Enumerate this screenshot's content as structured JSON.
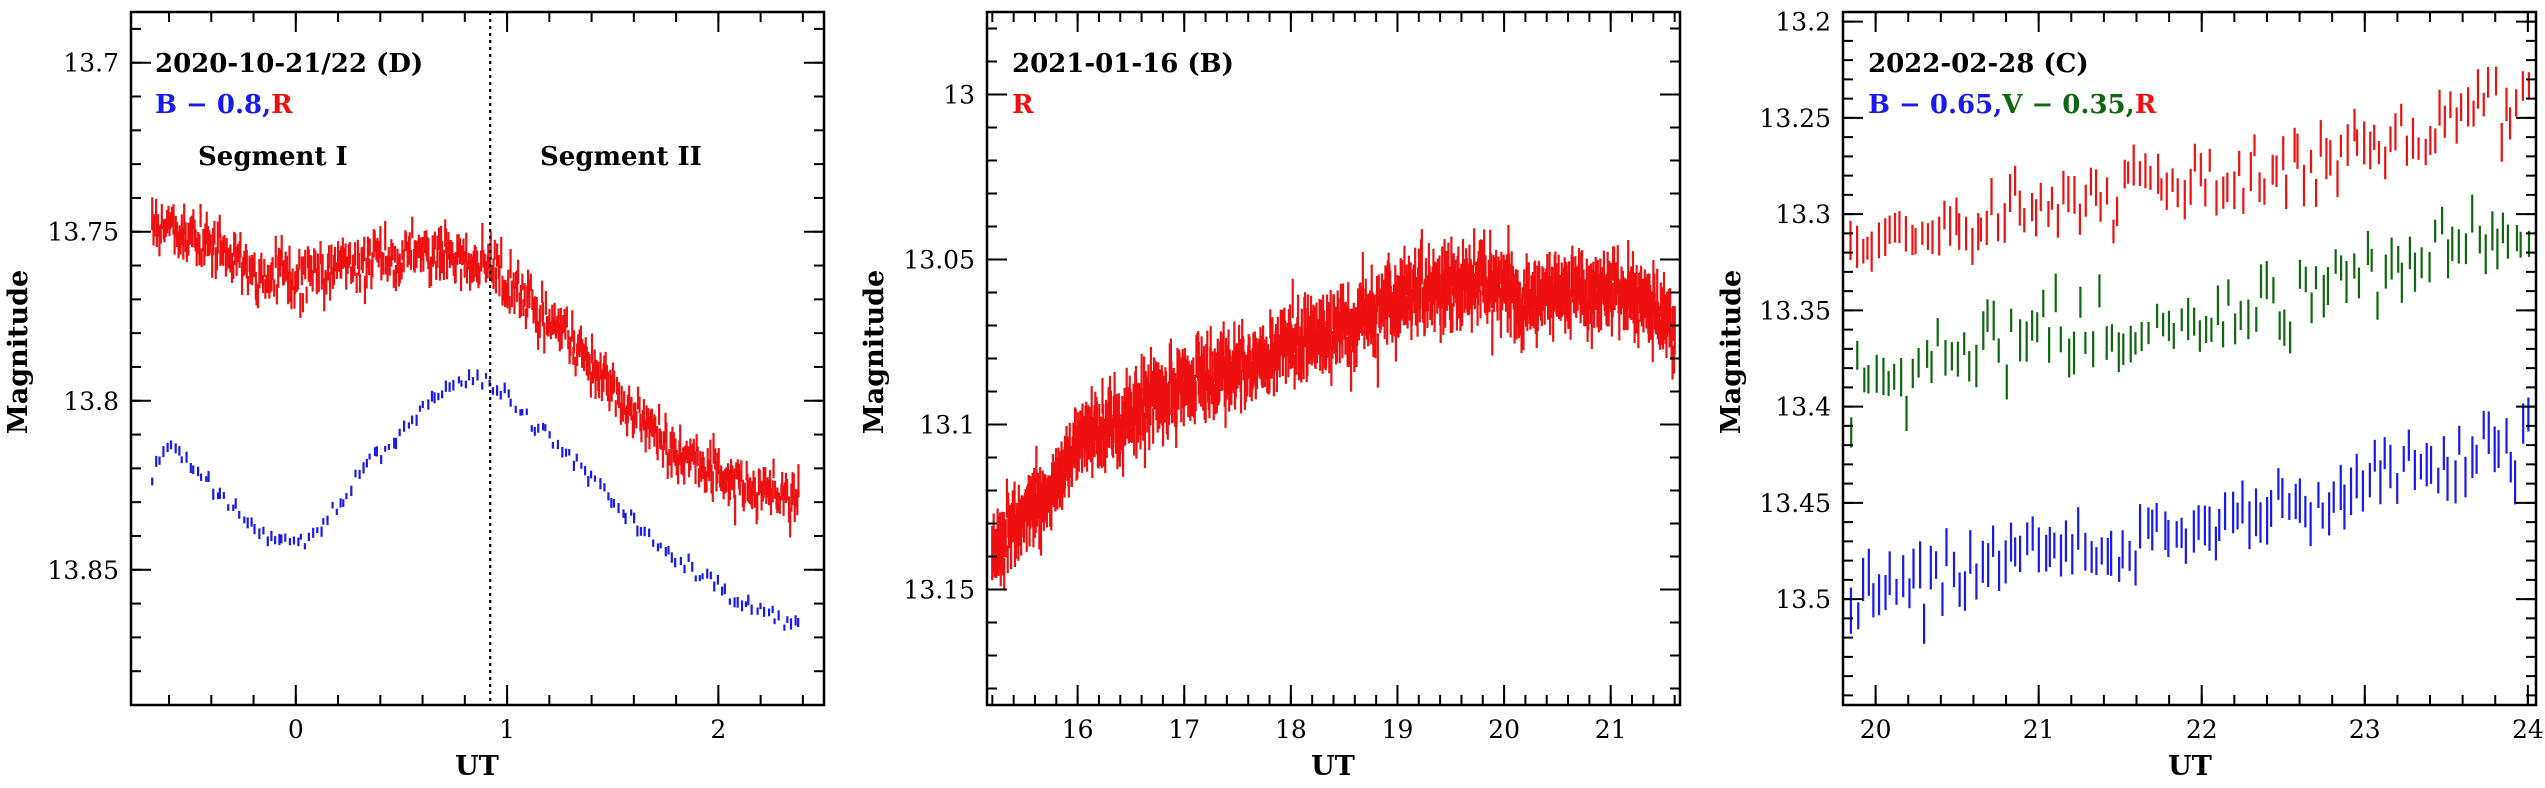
{
  "figure": {
    "background": "#ffffff"
  },
  "colors": {
    "blue": "#1a1aee",
    "red": "#ee1111",
    "green": "#116611",
    "black": "#000000"
  },
  "chart_data": [
    {
      "type": "scatter",
      "xlabel": "UT",
      "ylabel": "Magnitude",
      "xlim": [
        -0.78,
        2.5
      ],
      "ylim": [
        13.89,
        13.685
      ],
      "y_inverted": true,
      "xticks": [
        0,
        1,
        2
      ],
      "xtick_labels": [
        "0",
        "1",
        "2"
      ],
      "yticks": [
        13.7,
        13.75,
        13.8,
        13.85
      ],
      "ytick_labels": [
        "13.7",
        "13.75",
        "13.8",
        "13.85"
      ],
      "annotation_title": "2020-10-21/22 (D)",
      "annotation_series": [
        {
          "text": "B − 0.8,",
          "color": "#1a1aee"
        },
        {
          "text": "R",
          "color": "#ee1111"
        }
      ],
      "segments": [
        "Segment I",
        "Segment II"
      ],
      "vline_x": 0.92,
      "series": [
        {
          "color": "#ee1111",
          "err": 0.0035,
          "noise": 0.0032,
          "n_points": 520,
          "x_range": [
            -0.68,
            2.38
          ],
          "knots": [
            [
              -0.68,
              13.748
            ],
            [
              -0.4,
              13.754
            ],
            [
              -0.2,
              13.762
            ],
            [
              0.0,
              13.764
            ],
            [
              0.3,
              13.759
            ],
            [
              0.6,
              13.756
            ],
            [
              0.9,
              13.759
            ],
            [
              1.2,
              13.775
            ],
            [
              1.5,
              13.797
            ],
            [
              1.8,
              13.815
            ],
            [
              2.1,
              13.825
            ],
            [
              2.38,
              13.828
            ]
          ]
        },
        {
          "color": "#1a1aee",
          "err": 0.0012,
          "noise": 0.0014,
          "n_points": 170,
          "x_range": [
            -0.68,
            2.38
          ],
          "knots": [
            [
              -0.68,
              13.82
            ],
            [
              -0.6,
              13.812
            ],
            [
              -0.45,
              13.822
            ],
            [
              -0.25,
              13.835
            ],
            [
              -0.1,
              13.84
            ],
            [
              0.0,
              13.842
            ],
            [
              0.15,
              13.836
            ],
            [
              0.35,
              13.818
            ],
            [
              0.55,
              13.805
            ],
            [
              0.7,
              13.798
            ],
            [
              0.85,
              13.793
            ],
            [
              0.95,
              13.796
            ],
            [
              1.1,
              13.805
            ],
            [
              1.4,
              13.823
            ],
            [
              1.7,
              13.843
            ],
            [
              2.0,
              13.855
            ],
            [
              2.2,
              13.862
            ],
            [
              2.38,
              13.866
            ]
          ]
        }
      ]
    },
    {
      "type": "scatter",
      "xlabel": "UT",
      "ylabel": "Magnitude",
      "xlim": [
        15.15,
        21.65
      ],
      "ylim": [
        13.185,
        12.975
      ],
      "y_inverted": true,
      "xticks": [
        16,
        17,
        18,
        19,
        20,
        21
      ],
      "xtick_labels": [
        "16",
        "17",
        "18",
        "19",
        "20",
        "21"
      ],
      "yticks": [
        13.0,
        13.05,
        13.1,
        13.15
      ],
      "ytick_labels": [
        "13",
        "13.05",
        "13.1",
        "13.15"
      ],
      "annotation_title": "2021-01-16 (B)",
      "annotation_series": [
        {
          "text": "R",
          "color": "#ee1111"
        }
      ],
      "series": [
        {
          "color": "#ee1111",
          "err": 0.006,
          "noise": 0.0045,
          "n_points": 900,
          "x_range": [
            15.2,
            21.6
          ],
          "knots": [
            [
              15.2,
              13.14
            ],
            [
              15.6,
              13.125
            ],
            [
              16.0,
              13.107
            ],
            [
              16.5,
              13.097
            ],
            [
              17.0,
              13.088
            ],
            [
              17.5,
              13.082
            ],
            [
              18.0,
              13.077
            ],
            [
              18.5,
              13.07
            ],
            [
              19.0,
              13.063
            ],
            [
              19.5,
              13.058
            ],
            [
              19.8,
              13.055
            ],
            [
              20.2,
              13.063
            ],
            [
              20.6,
              13.06
            ],
            [
              21.0,
              13.057
            ],
            [
              21.3,
              13.063
            ],
            [
              21.6,
              13.072
            ]
          ]
        }
      ]
    },
    {
      "type": "scatter",
      "xlabel": "UT",
      "ylabel": "Magnitude",
      "xlim": [
        19.8,
        24.05
      ],
      "ylim": [
        13.555,
        13.195
      ],
      "y_inverted": true,
      "xticks": [
        20,
        21,
        22,
        23,
        24
      ],
      "xtick_labels": [
        "20",
        "21",
        "22",
        "23",
        "24"
      ],
      "yticks": [
        13.2,
        13.25,
        13.3,
        13.35,
        13.4,
        13.45,
        13.5
      ],
      "ytick_labels": [
        "13.2",
        "13.25",
        "13.3",
        "13.35",
        "13.4",
        "13.45",
        "13.5"
      ],
      "annotation_title": "2022-02-28 (C)",
      "annotation_series": [
        {
          "text": "B − 0.65,",
          "color": "#1a1aee"
        },
        {
          "text": "V − 0.35,",
          "color": "#116611"
        },
        {
          "text": "R",
          "color": "#ee1111"
        }
      ],
      "series": [
        {
          "color": "#ee1111",
          "err": 0.008,
          "noise": 0.0075,
          "n_points": 125,
          "x_range": [
            19.85,
            24.0
          ],
          "knots": [
            [
              19.85,
              13.318
            ],
            [
              20.5,
              13.305
            ],
            [
              21.0,
              13.293
            ],
            [
              21.5,
              13.29
            ],
            [
              22.0,
              13.285
            ],
            [
              22.5,
              13.275
            ],
            [
              23.0,
              13.265
            ],
            [
              23.5,
              13.255
            ],
            [
              24.0,
              13.235
            ]
          ]
        },
        {
          "color": "#116611",
          "err": 0.008,
          "noise": 0.0085,
          "n_points": 110,
          "x_range": [
            19.85,
            24.0
          ],
          "knots": [
            [
              19.85,
              13.39
            ],
            [
              20.5,
              13.375
            ],
            [
              21.0,
              13.36
            ],
            [
              21.5,
              13.362
            ],
            [
              22.0,
              13.355
            ],
            [
              22.5,
              13.345
            ],
            [
              23.0,
              13.332
            ],
            [
              23.5,
              13.318
            ],
            [
              24.0,
              13.31
            ]
          ]
        },
        {
          "color": "#1a1aee",
          "err": 0.009,
          "noise": 0.009,
          "n_points": 120,
          "x_range": [
            19.85,
            24.0
          ],
          "knots": [
            [
              19.85,
              13.5
            ],
            [
              20.5,
              13.485
            ],
            [
              21.0,
              13.475
            ],
            [
              21.5,
              13.472
            ],
            [
              22.0,
              13.463
            ],
            [
              22.5,
              13.452
            ],
            [
              23.0,
              13.44
            ],
            [
              23.5,
              13.428
            ],
            [
              24.0,
              13.415
            ]
          ]
        }
      ]
    }
  ]
}
